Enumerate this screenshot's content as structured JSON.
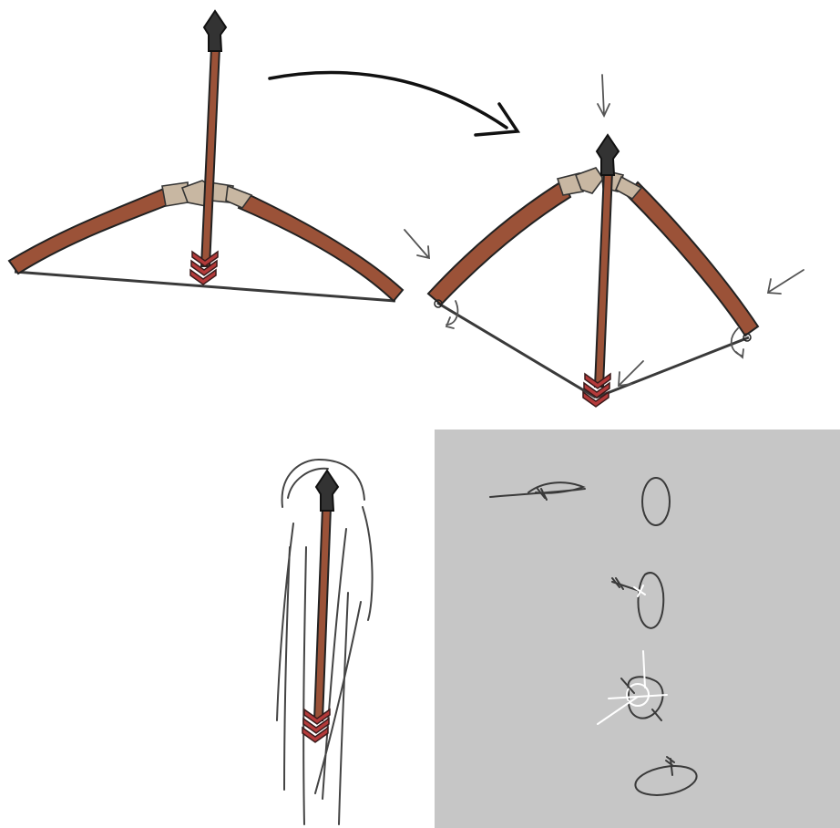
{
  "colors": {
    "background": "#ffffff",
    "panel": "#c6c6c6",
    "wood": "#9b5238",
    "wrap": "#c8b7a2",
    "string": "#3a3a3a",
    "tip": "#333333",
    "fletch": "#b33a3a",
    "ink": "#111111",
    "sketch_white": "#ffffff"
  },
  "icons": {
    "transition_arrow": "curved-arrow-right",
    "force_arrows": "thin-pointer-arrows",
    "fletching": "chevron-feathers"
  }
}
